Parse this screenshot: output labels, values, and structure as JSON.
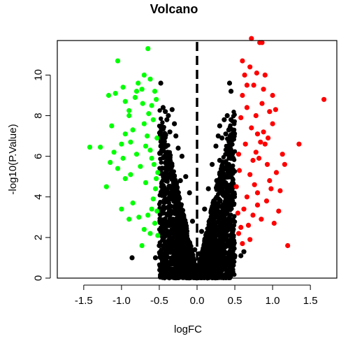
{
  "chart_data": {
    "type": "scatter",
    "title": "Volcano",
    "xlabel": "logFC",
    "ylabel": "-log10(P.Value)",
    "xlim": [
      -1.85,
      1.85
    ],
    "ylim": [
      0,
      11.7
    ],
    "x_ticks": [
      -1.5,
      -1.0,
      -0.5,
      0.0,
      0.5,
      1.0,
      1.5
    ],
    "x_tick_labels": [
      "-1.5",
      "-1.0",
      "-0.5",
      "0.0",
      "0.5",
      "1.0",
      "1.5"
    ],
    "y_ticks": [
      0,
      2,
      4,
      6,
      8,
      10
    ],
    "y_tick_labels": [
      "0",
      "2",
      "4",
      "6",
      "8",
      "10"
    ],
    "reference_line": {
      "x": 0,
      "style": "dashed",
      "color": "#000000"
    },
    "grid": false,
    "legend": "none",
    "colors": {
      "up": "#ff0000",
      "down": "#00ff00",
      "ns": "#000000"
    },
    "series": [
      {
        "group": "down",
        "color": "#00ff00",
        "points": [
          [
            -1.42,
            6.45
          ],
          [
            -1.28,
            6.45
          ],
          [
            -1.13,
            7.5
          ],
          [
            -1.2,
            4.5
          ],
          [
            -1.17,
            9.0
          ],
          [
            -1.05,
            10.7
          ],
          [
            -1.1,
            6.2
          ],
          [
            -1.05,
            5.4
          ],
          [
            -1.08,
            9.1
          ],
          [
            -0.98,
            9.4
          ],
          [
            -0.95,
            8.7
          ],
          [
            -0.9,
            8.25
          ],
          [
            -0.88,
            5.1
          ],
          [
            -0.8,
            9.2
          ],
          [
            -0.78,
            9.6
          ],
          [
            -0.73,
            9.3
          ],
          [
            -0.7,
            10.0
          ],
          [
            -0.65,
            11.3
          ],
          [
            -0.62,
            9.8
          ],
          [
            -0.6,
            8.5
          ],
          [
            -0.58,
            7.8
          ],
          [
            -0.56,
            9.2
          ],
          [
            -0.54,
            8.8
          ],
          [
            -0.53,
            6.9
          ],
          [
            -0.52,
            5.2
          ],
          [
            -0.55,
            4.4
          ],
          [
            -0.6,
            3.4
          ],
          [
            -0.65,
            3.1
          ],
          [
            -0.7,
            2.4
          ],
          [
            -0.73,
            1.6
          ],
          [
            -0.9,
            2.9
          ],
          [
            -0.85,
            3.7
          ],
          [
            -0.95,
            4.9
          ],
          [
            -1.0,
            6.6
          ],
          [
            -1.15,
            5.7
          ],
          [
            -0.8,
            6.1
          ],
          [
            -0.75,
            5.5
          ],
          [
            -0.68,
            4.7
          ],
          [
            -0.62,
            6.3
          ],
          [
            -0.58,
            3.9
          ],
          [
            -0.56,
            2.7
          ],
          [
            -0.53,
            3.3
          ],
          [
            -0.52,
            2.1
          ],
          [
            -0.9,
            8.0
          ],
          [
            -0.85,
            7.3
          ],
          [
            -0.95,
            7.1
          ],
          [
            -0.7,
            7.6
          ],
          [
            -0.66,
            7.0
          ],
          [
            -0.6,
            5.9
          ],
          [
            -0.57,
            5.6
          ],
          [
            -0.54,
            4.9
          ],
          [
            -1.0,
            3.4
          ],
          [
            -0.77,
            3.0
          ],
          [
            -0.62,
            2.2
          ],
          [
            -0.72,
            8.6
          ],
          [
            -0.82,
            8.9
          ],
          [
            -0.64,
            8.1
          ],
          [
            -0.88,
            6.7
          ],
          [
            -0.98,
            5.9
          ],
          [
            -0.68,
            6.5
          ]
        ]
      },
      {
        "group": "up",
        "color": "#ff0000",
        "points": [
          [
            0.52,
            4.5
          ],
          [
            0.55,
            6.1
          ],
          [
            0.58,
            7.9
          ],
          [
            0.6,
            9.0
          ],
          [
            0.63,
            10.0
          ],
          [
            0.66,
            8.4
          ],
          [
            0.7,
            10.4
          ],
          [
            0.72,
            11.8
          ],
          [
            0.75,
            9.5
          ],
          [
            0.78,
            8.0
          ],
          [
            0.8,
            7.1
          ],
          [
            0.83,
            11.6
          ],
          [
            0.86,
            11.6
          ],
          [
            0.88,
            9.3
          ],
          [
            0.9,
            6.6
          ],
          [
            0.93,
            5.6
          ],
          [
            0.96,
            4.8
          ],
          [
            1.0,
            7.6
          ],
          [
            1.05,
            5.2
          ],
          [
            1.1,
            4.3
          ],
          [
            1.13,
            6.1
          ],
          [
            1.16,
            5.6
          ],
          [
            1.2,
            1.6
          ],
          [
            1.35,
            6.6
          ],
          [
            1.68,
            8.8
          ],
          [
            0.55,
            2.2
          ],
          [
            0.6,
            1.7
          ],
          [
            0.68,
            2.6
          ],
          [
            0.74,
            3.1
          ],
          [
            0.8,
            3.6
          ],
          [
            0.85,
            2.9
          ],
          [
            0.92,
            3.8
          ],
          [
            0.98,
            4.4
          ],
          [
            1.02,
            2.7
          ],
          [
            1.08,
            3.3
          ],
          [
            0.62,
            3.4
          ],
          [
            0.7,
            5.1
          ],
          [
            0.76,
            4.6
          ],
          [
            0.82,
            5.9
          ],
          [
            0.88,
            7.2
          ],
          [
            0.94,
            6.9
          ],
          [
            0.56,
            5.3
          ],
          [
            0.64,
            6.6
          ],
          [
            0.72,
            7.4
          ],
          [
            0.78,
            6.2
          ],
          [
            0.86,
            8.6
          ],
          [
            0.9,
            10.0
          ],
          [
            0.54,
            3.2
          ],
          [
            0.58,
            2.5
          ],
          [
            0.66,
            4.0
          ],
          [
            0.7,
            1.9
          ],
          [
            0.74,
            5.8
          ],
          [
            0.8,
            4.2
          ],
          [
            0.84,
            6.7
          ],
          [
            0.96,
            8.2
          ],
          [
            1.0,
            9.0
          ],
          [
            1.04,
            8.3
          ],
          [
            0.66,
            9.5
          ],
          [
            0.6,
            10.7
          ],
          [
            0.79,
            10.1
          ]
        ]
      },
      {
        "group": "ns",
        "color": "#000000",
        "points": [
          [
            -0.48,
            9.6
          ],
          [
            -0.45,
            8.4
          ],
          [
            -0.42,
            8.2
          ],
          [
            -0.4,
            7.8
          ],
          [
            -0.38,
            8.0
          ],
          [
            -0.36,
            7.2
          ],
          [
            -0.33,
            8.3
          ],
          [
            -0.3,
            7.6
          ],
          [
            -0.28,
            7.0
          ],
          [
            -0.25,
            6.4
          ],
          [
            -0.2,
            6.0
          ],
          [
            -0.15,
            5.0
          ],
          [
            -0.1,
            4.2
          ],
          [
            -0.06,
            2.8
          ],
          [
            -0.03,
            1.4
          ],
          [
            0.0,
            0.4
          ],
          [
            0.03,
            1.2
          ],
          [
            0.06,
            2.3
          ],
          [
            0.1,
            3.4
          ],
          [
            0.15,
            4.4
          ],
          [
            0.2,
            5.6
          ],
          [
            0.25,
            6.5
          ],
          [
            0.28,
            7.0
          ],
          [
            0.3,
            7.5
          ],
          [
            0.33,
            6.9
          ],
          [
            0.36,
            7.8
          ],
          [
            0.38,
            7.1
          ],
          [
            0.4,
            8.0
          ],
          [
            0.42,
            7.3
          ],
          [
            0.45,
            7.8
          ],
          [
            0.48,
            7.0
          ],
          [
            -0.48,
            6.5
          ],
          [
            -0.46,
            5.4
          ],
          [
            -0.45,
            4.3
          ],
          [
            -0.44,
            3.2
          ],
          [
            -0.43,
            2.1
          ],
          [
            -0.42,
            1.3
          ],
          [
            -0.4,
            0.7
          ],
          [
            -0.45,
            0.2
          ],
          [
            -0.86,
            1.0
          ],
          [
            -0.55,
            1.0
          ],
          [
            -0.5,
            1.6
          ],
          [
            -0.35,
            5.5
          ],
          [
            -0.32,
            4.0
          ],
          [
            -0.3,
            2.5
          ],
          [
            -0.28,
            1.2
          ],
          [
            -0.25,
            3.5
          ],
          [
            -0.22,
            4.8
          ],
          [
            -0.18,
            3.0
          ],
          [
            -0.12,
            1.8
          ],
          [
            0.12,
            1.6
          ],
          [
            0.18,
            2.6
          ],
          [
            0.22,
            3.8
          ],
          [
            0.26,
            4.8
          ],
          [
            0.3,
            5.8
          ],
          [
            0.32,
            3.1
          ],
          [
            0.35,
            2.0
          ],
          [
            0.38,
            1.0
          ],
          [
            0.4,
            4.4
          ],
          [
            0.42,
            5.6
          ],
          [
            0.44,
            6.2
          ],
          [
            0.46,
            3.6
          ],
          [
            0.48,
            2.4
          ],
          [
            0.5,
            1.1
          ],
          [
            0.47,
            0.4
          ],
          [
            0.58,
            1.1
          ],
          [
            0.62,
            1.3
          ],
          [
            0.45,
            9.2
          ],
          [
            0.43,
            9.6
          ],
          [
            0.2,
            0.2
          ],
          [
            -0.2,
            0.3
          ],
          [
            0.1,
            0.1
          ],
          [
            -0.1,
            0.1
          ],
          [
            0.36,
            0.5
          ]
        ]
      }
    ]
  }
}
